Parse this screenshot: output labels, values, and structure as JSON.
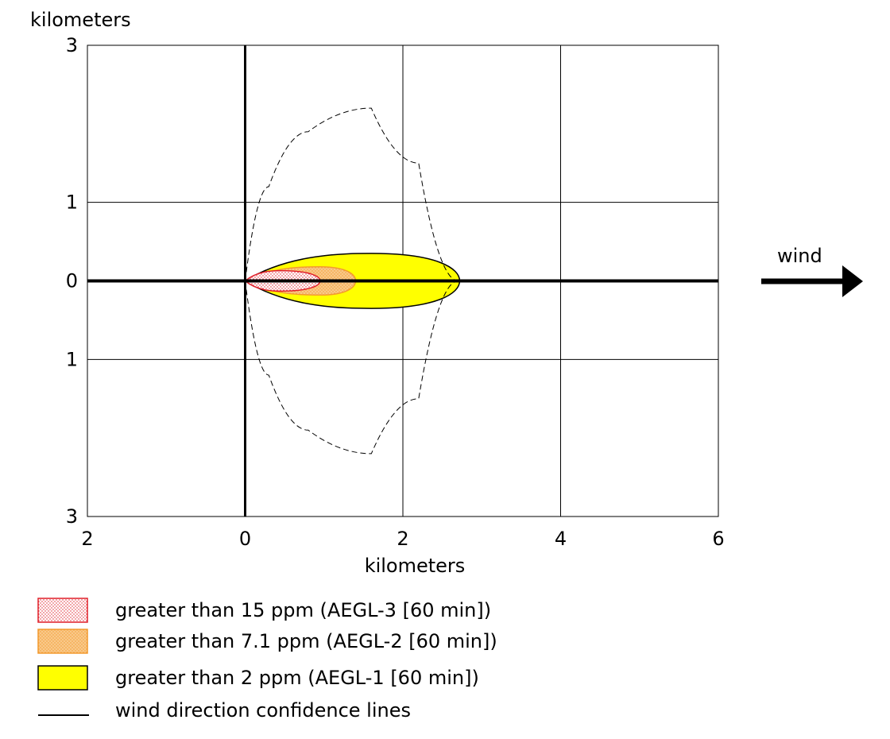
{
  "chart_data": {
    "type": "area",
    "ylabel": "kilometers",
    "xlabel": "kilometers",
    "xlim": [
      -2,
      6
    ],
    "ylim": [
      -3,
      3
    ],
    "x_ticks": [
      {
        "value": -2,
        "label": "2"
      },
      {
        "value": 0,
        "label": "0"
      },
      {
        "value": 2,
        "label": "2"
      },
      {
        "value": 4,
        "label": "4"
      },
      {
        "value": 6,
        "label": "6"
      }
    ],
    "y_ticks": [
      {
        "value": 3,
        "label": "3"
      },
      {
        "value": 1,
        "label": "1"
      },
      {
        "value": 0,
        "label": "0"
      },
      {
        "value": -1,
        "label": "1"
      },
      {
        "value": -3,
        "label": "3"
      }
    ],
    "grid": true,
    "wind_label": "wind",
    "zones": [
      {
        "name": "greater than 2 ppm (AEGL-1 [60 min])",
        "x_start": 0,
        "x_end": 2.72,
        "half_width_max": 0.35,
        "x_at_max_width": 1.6,
        "fill": "#ffff00",
        "stroke": "#000000",
        "pattern": "none"
      },
      {
        "name": "greater than 7.1 ppm (AEGL-2 [60 min])",
        "x_start": 0,
        "x_end": 1.4,
        "half_width_max": 0.18,
        "x_at_max_width": 0.95,
        "fill": "#f9c98a",
        "stroke": "#f39a2e",
        "pattern": "dots"
      },
      {
        "name": "greater than 15 ppm (AEGL-3 [60 min])",
        "x_start": 0,
        "x_end": 0.95,
        "half_width_max": 0.13,
        "x_at_max_width": 0.45,
        "fill": "#ffffff",
        "stroke": "#e0202a",
        "pattern": "dots"
      }
    ],
    "confidence_lines": {
      "name": "wind direction confidence lines",
      "upper": [
        [
          0,
          0
        ],
        [
          0.3,
          1.2
        ],
        [
          0.8,
          1.9
        ],
        [
          1.6,
          2.2
        ],
        [
          2.2,
          1.5
        ],
        [
          2.7,
          0
        ]
      ],
      "lower": [
        [
          0,
          0
        ],
        [
          0.3,
          -1.2
        ],
        [
          0.8,
          -1.9
        ],
        [
          1.6,
          -2.2
        ],
        [
          2.2,
          -1.5
        ],
        [
          2.7,
          0
        ]
      ]
    },
    "legend": {
      "position": "bottom-left",
      "items": [
        {
          "label": "greater than 15 ppm (AEGL-3 [60 min])",
          "fill": "#ffffff",
          "stroke": "#e0202a",
          "pattern": "dots"
        },
        {
          "label": "greater than 7.1 ppm (AEGL-2 [60 min])",
          "fill": "#f9c98a",
          "stroke": "#f39a2e",
          "pattern": "dots"
        },
        {
          "label": "greater than 2 ppm (AEGL-1 [60 min])",
          "fill": "#ffff00",
          "stroke": "#000000",
          "pattern": "none"
        },
        {
          "label": "wind direction confidence lines",
          "fill": "none",
          "stroke": "#000000",
          "pattern": "line"
        }
      ]
    }
  }
}
